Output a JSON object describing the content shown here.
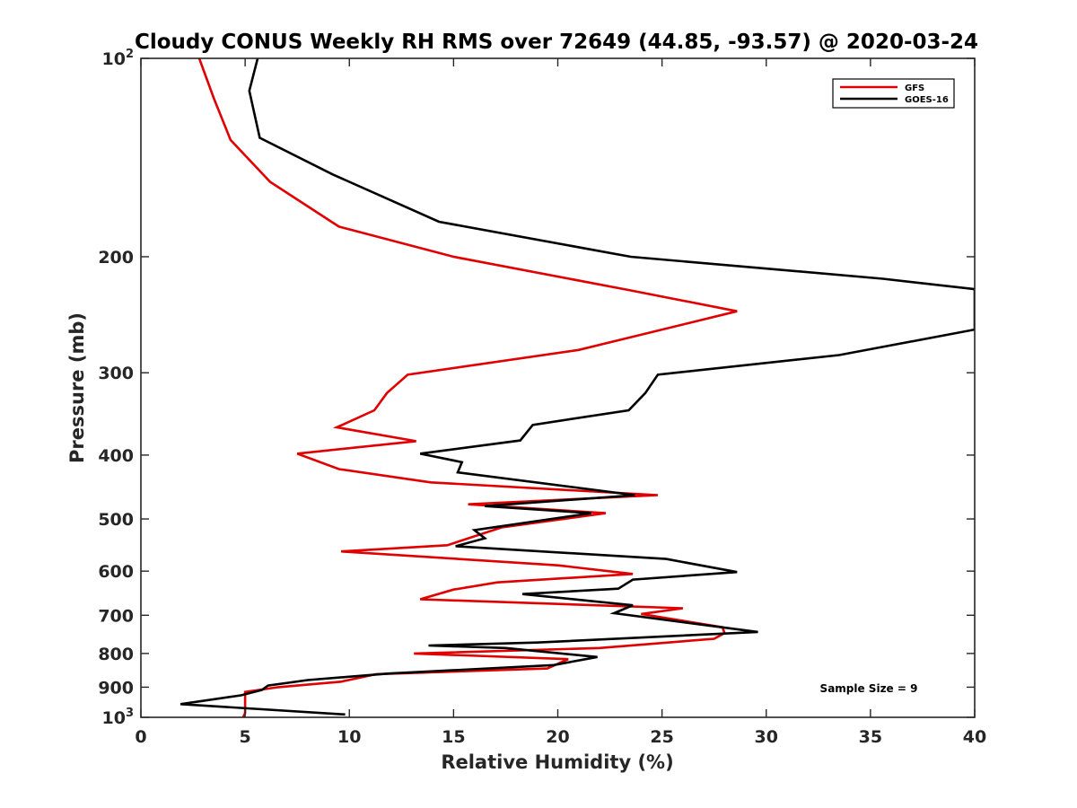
{
  "chart_data": {
    "type": "line",
    "title": "Cloudy CONUS Weekly RH RMS over 72649 (44.85, -93.57) @ 2020-03-24",
    "xlabel": "Relative Humidity (%)",
    "ylabel": "Pressure (mb)",
    "xlim": [
      0,
      40
    ],
    "ylim": [
      100,
      1000
    ],
    "y_scale": "log",
    "y_reversed": true,
    "grid": false,
    "legend_position": "top-right",
    "x_ticks": [
      "0",
      "5",
      "10",
      "15",
      "20",
      "25",
      "30",
      "35",
      "40"
    ],
    "y_ticks": [
      {
        "value": 100,
        "base": "10",
        "exp": "2"
      },
      {
        "value": 200,
        "label": "200"
      },
      {
        "value": 300,
        "label": "300"
      },
      {
        "value": 400,
        "label": "400"
      },
      {
        "value": 500,
        "label": "500"
      },
      {
        "value": 600,
        "label": "600"
      },
      {
        "value": 700,
        "label": "700"
      },
      {
        "value": 800,
        "label": "800"
      },
      {
        "value": 900,
        "label": "900"
      },
      {
        "value": 1000,
        "base": "10",
        "exp": "3"
      }
    ],
    "annotation": "Sample Size = 9",
    "series": [
      {
        "name": "GFS",
        "color": "#e00000",
        "points": [
          [
            2.8,
            100
          ],
          [
            3.5,
            115
          ],
          [
            4.3,
            133
          ],
          [
            6.2,
            154
          ],
          [
            9.5,
            180
          ],
          [
            15.0,
            200
          ],
          [
            23.5,
            225
          ],
          [
            28.6,
            242
          ],
          [
            21.0,
            277
          ],
          [
            12.8,
            302
          ],
          [
            11.8,
            322
          ],
          [
            11.2,
            342
          ],
          [
            9.4,
            363
          ],
          [
            13.2,
            381
          ],
          [
            7.5,
            398
          ],
          [
            9.5,
            420
          ],
          [
            13.9,
            440
          ],
          [
            24.8,
            460
          ],
          [
            15.7,
            475
          ],
          [
            22.3,
            490
          ],
          [
            17.3,
            515
          ],
          [
            14.7,
            548
          ],
          [
            9.6,
            560
          ],
          [
            20.0,
            588
          ],
          [
            23.6,
            606
          ],
          [
            17.1,
            624
          ],
          [
            15.0,
            640
          ],
          [
            13.4,
            662
          ],
          [
            26.0,
            683
          ],
          [
            24.0,
            697
          ],
          [
            27.9,
            730
          ],
          [
            28.0,
            745
          ],
          [
            27.5,
            760
          ],
          [
            22.0,
            785
          ],
          [
            13.1,
            800
          ],
          [
            20.5,
            816
          ],
          [
            19.5,
            843
          ],
          [
            11.3,
            860
          ],
          [
            9.6,
            883
          ],
          [
            6.6,
            900
          ],
          [
            5.0,
            915
          ],
          [
            5.0,
            985
          ],
          [
            4.9,
            1000
          ]
        ]
      },
      {
        "name": "GOES-16",
        "color": "#000000",
        "points": [
          [
            5.6,
            100
          ],
          [
            5.2,
            112
          ],
          [
            5.7,
            132
          ],
          [
            9.2,
            150
          ],
          [
            14.3,
            177
          ],
          [
            23.5,
            200
          ],
          [
            35.6,
            216
          ],
          [
            40.0,
            224
          ],
          [
            40.0,
            258
          ],
          [
            33.5,
            282
          ],
          [
            24.8,
            302
          ],
          [
            24.2,
            322
          ],
          [
            23.4,
            342
          ],
          [
            18.8,
            360
          ],
          [
            18.2,
            380
          ],
          [
            13.4,
            398
          ],
          [
            15.4,
            410
          ],
          [
            15.2,
            425
          ],
          [
            23.7,
            460
          ],
          [
            16.5,
            478
          ],
          [
            21.6,
            490
          ],
          [
            16.0,
            520
          ],
          [
            16.5,
            535
          ],
          [
            15.1,
            550
          ],
          [
            25.2,
            575
          ],
          [
            28.6,
            602
          ],
          [
            23.6,
            618
          ],
          [
            22.9,
            638
          ],
          [
            18.3,
            650
          ],
          [
            23.6,
            676
          ],
          [
            22.7,
            695
          ],
          [
            29.6,
            742
          ],
          [
            19.0,
            770
          ],
          [
            13.8,
            778
          ],
          [
            17.5,
            785
          ],
          [
            21.9,
            810
          ],
          [
            19.8,
            833
          ],
          [
            11.9,
            858
          ],
          [
            8.0,
            878
          ],
          [
            6.1,
            895
          ],
          [
            5.8,
            909
          ],
          [
            4.8,
            926
          ],
          [
            1.9,
            955
          ],
          [
            9.8,
            990
          ]
        ]
      }
    ]
  }
}
